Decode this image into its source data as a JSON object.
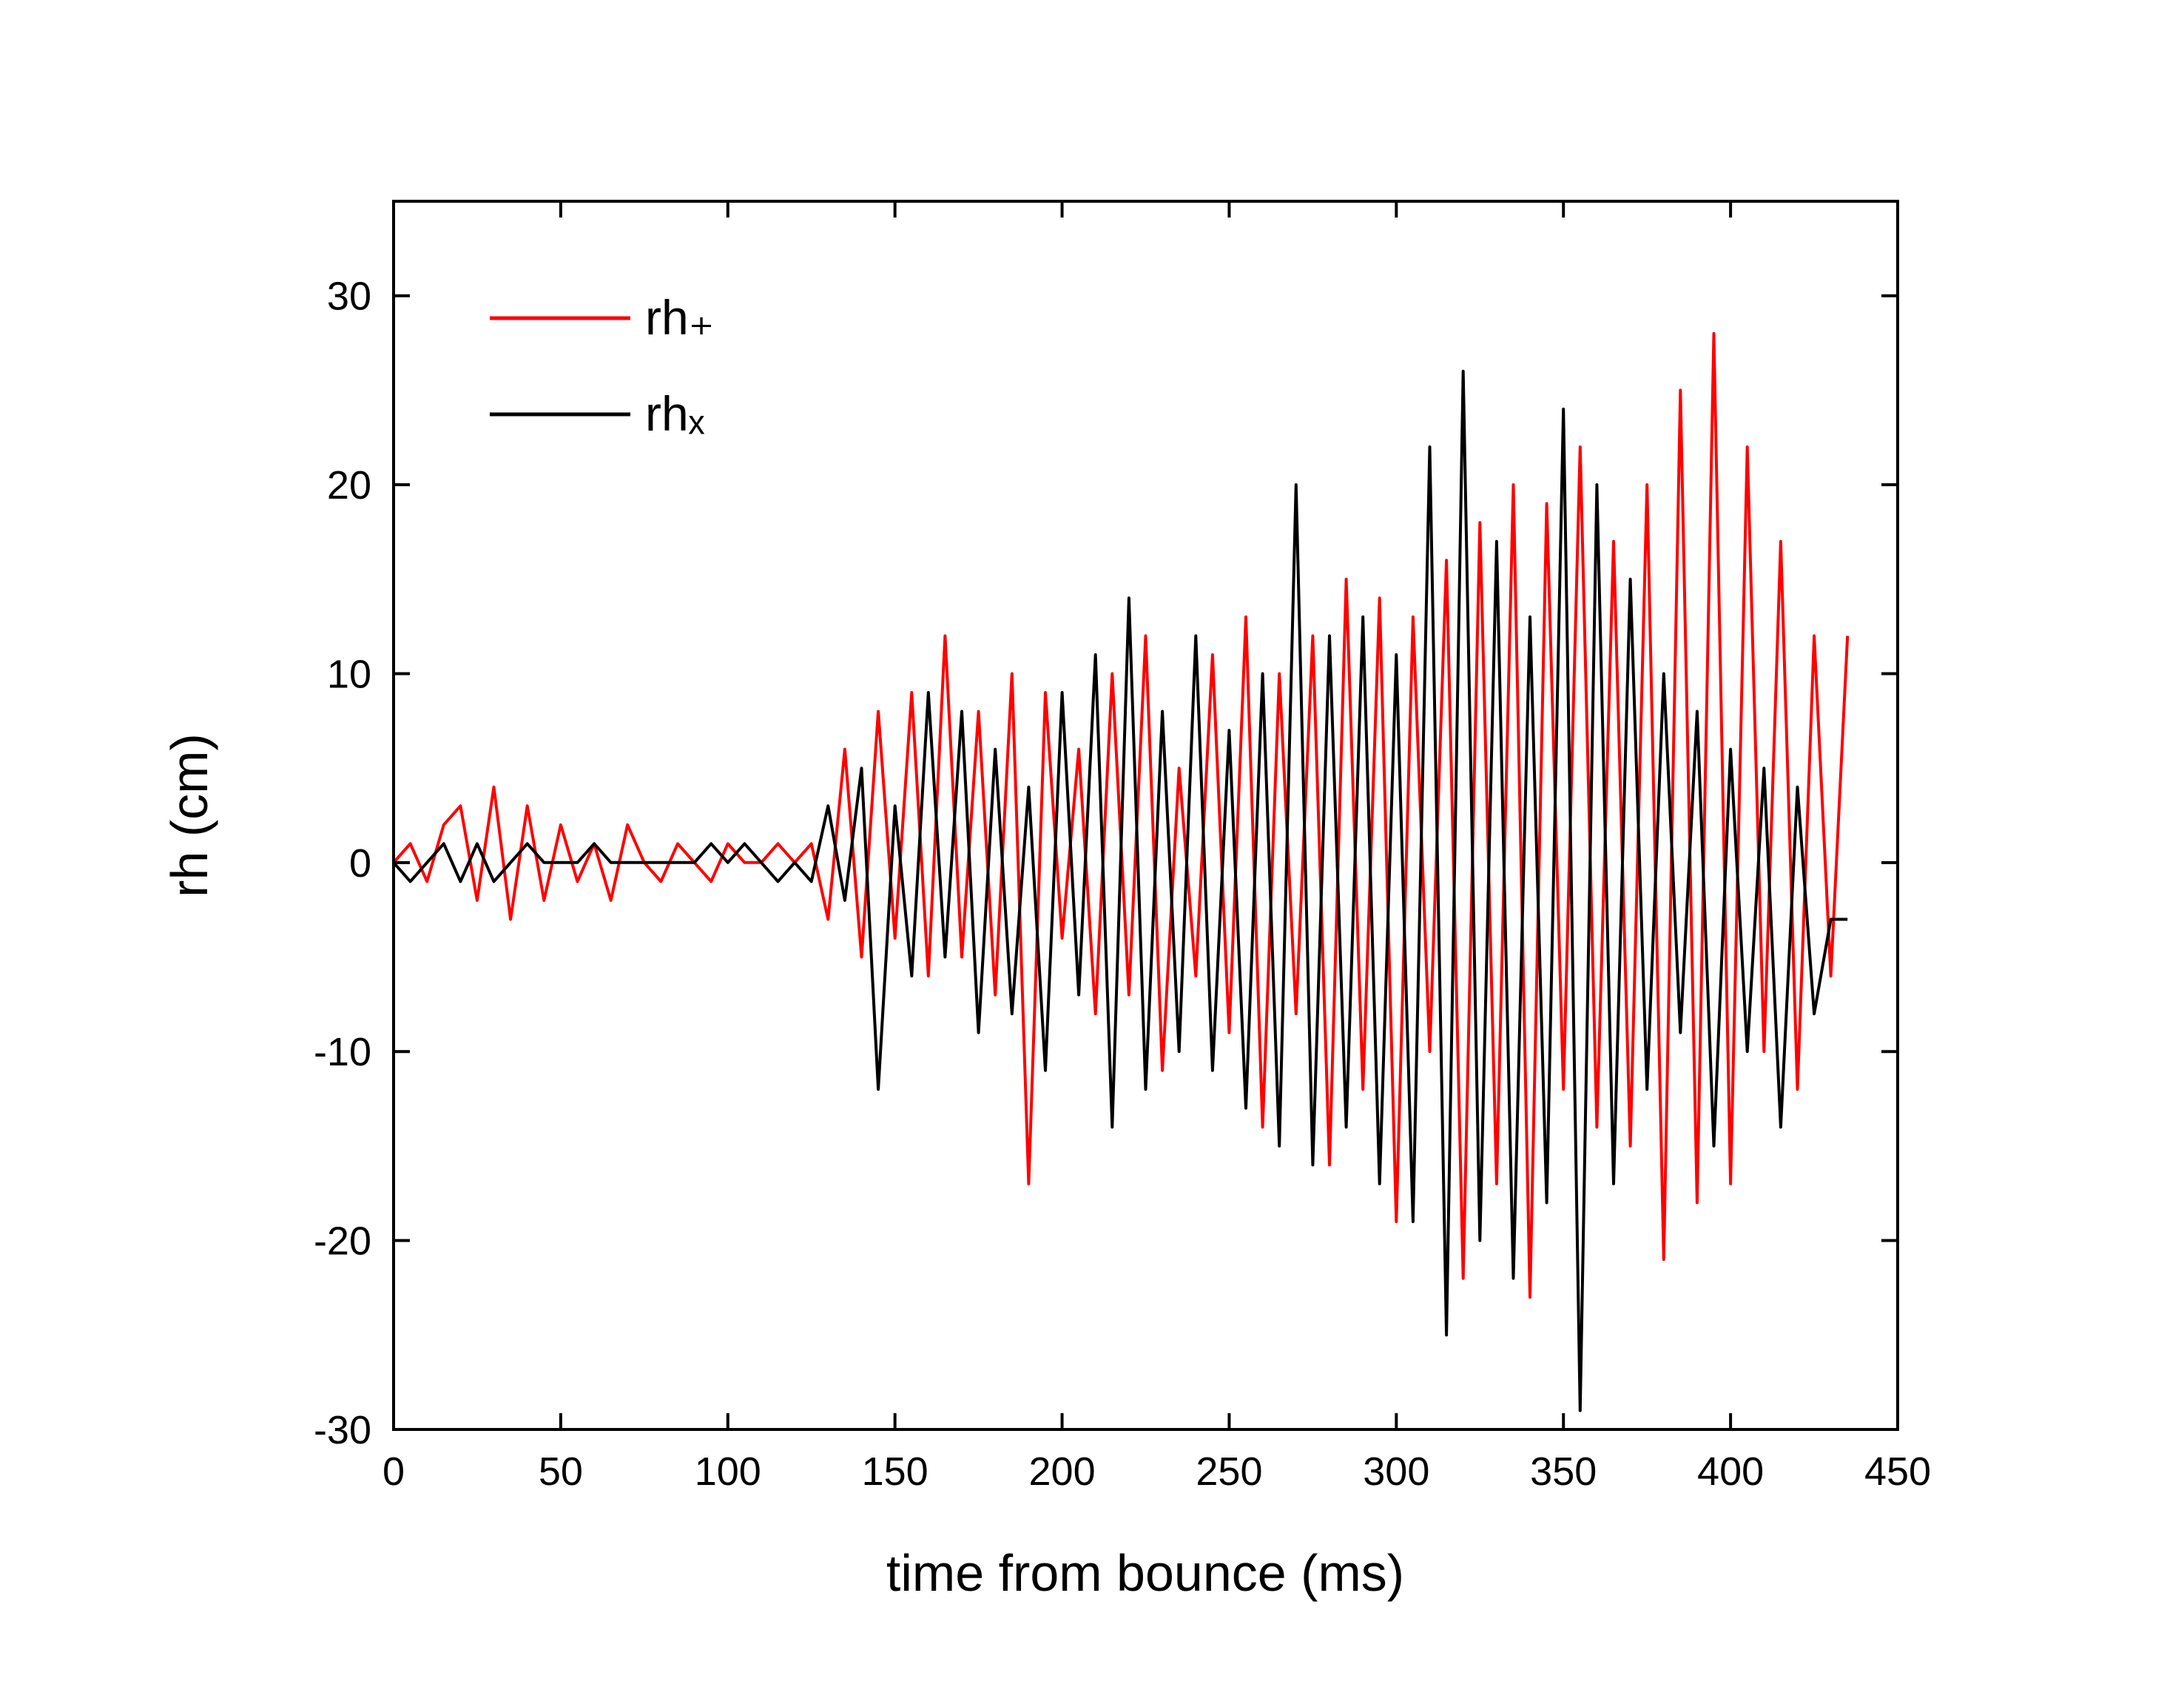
{
  "chart_data": {
    "type": "line",
    "xlabel": "time from bounce (ms)",
    "ylabel": "rh (cm)",
    "x": [
      0,
      5,
      10,
      15,
      20,
      25,
      30,
      35,
      40,
      45,
      50,
      55,
      60,
      65,
      70,
      75,
      80,
      85,
      90,
      95,
      100,
      105,
      110,
      115,
      120,
      125,
      130,
      135,
      140,
      145,
      150,
      155,
      160,
      165,
      170,
      175,
      180,
      185,
      190,
      195,
      200,
      205,
      210,
      215,
      220,
      225,
      230,
      235,
      240,
      245,
      250,
      255,
      260,
      265,
      270,
      275,
      280,
      285,
      290,
      295,
      300,
      305,
      310,
      315,
      320,
      325,
      330,
      335,
      340,
      345,
      350,
      355,
      360,
      365,
      370,
      375,
      380,
      385,
      390,
      395,
      400,
      405,
      410,
      415,
      420,
      425,
      430,
      435
    ],
    "series": [
      {
        "name": "rh₊",
        "color": "#ff0000",
        "values": [
          0,
          1,
          -1,
          2,
          3,
          -2,
          4,
          -3,
          3,
          -2,
          2,
          -1,
          1,
          -2,
          2,
          0,
          -1,
          1,
          0,
          -1,
          1,
          0,
          0,
          1,
          0,
          1,
          -3,
          6,
          -5,
          8,
          -4,
          9,
          -6,
          12,
          -5,
          8,
          -7,
          10,
          -17,
          9,
          -4,
          6,
          -8,
          10,
          -7,
          12,
          -11,
          5,
          -6,
          11,
          -9,
          13,
          -14,
          10,
          -8,
          12,
          -16,
          15,
          -12,
          14,
          -19,
          13,
          -10,
          16,
          -22,
          18,
          -17,
          20,
          -23,
          19,
          -12,
          22,
          -14,
          17,
          -15,
          20,
          -21,
          25,
          -18,
          28,
          -17,
          22,
          -10,
          17,
          -12,
          12,
          -6,
          12
        ]
      },
      {
        "name": "rhₓ",
        "color": "#000000",
        "values": [
          0,
          -1,
          0,
          1,
          -1,
          1,
          -1,
          0,
          1,
          0,
          0,
          0,
          1,
          0,
          0,
          0,
          0,
          0,
          0,
          1,
          0,
          1,
          0,
          -1,
          0,
          -1,
          3,
          -2,
          5,
          -12,
          3,
          -6,
          9,
          -5,
          8,
          -9,
          6,
          -8,
          4,
          -11,
          9,
          -7,
          11,
          -14,
          14,
          -12,
          8,
          -10,
          12,
          -11,
          7,
          -13,
          10,
          -15,
          20,
          -16,
          12,
          -14,
          13,
          -17,
          11,
          -19,
          22,
          -25,
          26,
          -20,
          17,
          -22,
          13,
          -18,
          24,
          -29,
          20,
          -17,
          15,
          -12,
          10,
          -9,
          8,
          -15,
          6,
          -10,
          5,
          -14,
          4,
          -8,
          -3,
          -3
        ]
      }
    ],
    "xlim": [
      0,
      450
    ],
    "xticks": [
      0,
      50,
      100,
      150,
      200,
      250,
      300,
      350,
      400,
      450
    ],
    "ylim": [
      -30,
      35
    ],
    "yticks": [
      -30,
      -20,
      -10,
      0,
      10,
      20,
      30
    ],
    "legend": "upper left"
  }
}
